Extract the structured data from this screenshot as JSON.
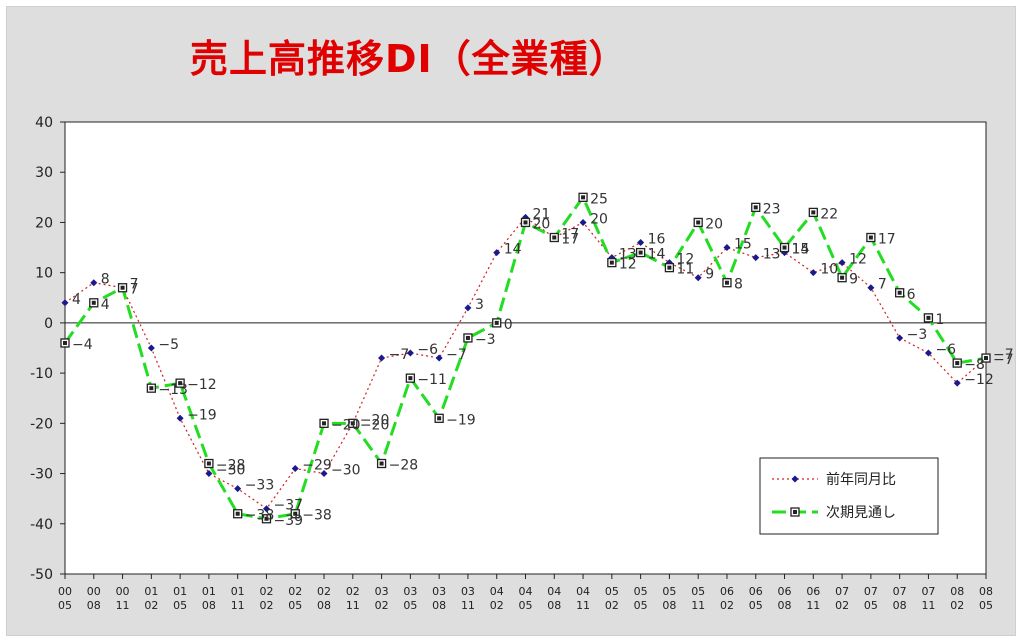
{
  "chart_data": {
    "type": "line",
    "title": "売上高推移DI（全業種）",
    "x": [
      [
        "00",
        "05"
      ],
      [
        "00",
        "08"
      ],
      [
        "00",
        "11"
      ],
      [
        "01",
        "02"
      ],
      [
        "01",
        "05"
      ],
      [
        "01",
        "08"
      ],
      [
        "01",
        "11"
      ],
      [
        "02",
        "02"
      ],
      [
        "02",
        "05"
      ],
      [
        "02",
        "08"
      ],
      [
        "02",
        "11"
      ],
      [
        "03",
        "02"
      ],
      [
        "03",
        "05"
      ],
      [
        "03",
        "08"
      ],
      [
        "03",
        "11"
      ],
      [
        "04",
        "02"
      ],
      [
        "04",
        "05"
      ],
      [
        "04",
        "08"
      ],
      [
        "04",
        "11"
      ],
      [
        "05",
        "02"
      ],
      [
        "05",
        "05"
      ],
      [
        "05",
        "08"
      ],
      [
        "05",
        "11"
      ],
      [
        "06",
        "02"
      ],
      [
        "06",
        "05"
      ],
      [
        "06",
        "08"
      ],
      [
        "06",
        "11"
      ],
      [
        "07",
        "02"
      ],
      [
        "07",
        "05"
      ],
      [
        "07",
        "08"
      ],
      [
        "07",
        "11"
      ],
      [
        "08",
        "02"
      ],
      [
        "08",
        "05"
      ]
    ],
    "ylim": [
      -50,
      40
    ],
    "yticks": [
      40,
      30,
      20,
      10,
      0,
      -10,
      -20,
      -30,
      -40,
      -50
    ],
    "grid": false,
    "legend_position": "bottom-right",
    "series": [
      {
        "name": "前年同月比",
        "color": "#d02020",
        "marker_color": "#1a1a8c",
        "style": "dotted",
        "values": [
          4,
          8,
          7,
          -5,
          -19,
          -30,
          -33,
          -37,
          -29,
          -30,
          -20,
          -7,
          -6,
          -7,
          3,
          14,
          21,
          17,
          20,
          13,
          16,
          12,
          9,
          15,
          13,
          14,
          10,
          12,
          7,
          -3,
          -6,
          -12,
          -7
        ]
      },
      {
        "name": "次期見通し",
        "color": "#22dd22",
        "marker_color": "#222222",
        "style": "dashed",
        "values": [
          -4,
          4,
          7,
          -13,
          -12,
          -28,
          -38,
          -39,
          -38,
          -20,
          -20,
          -28,
          -11,
          -19,
          -3,
          0,
          20,
          17,
          25,
          12,
          14,
          11,
          20,
          8,
          23,
          15,
          22,
          9,
          17,
          6,
          1,
          -8,
          -7
        ]
      }
    ]
  }
}
